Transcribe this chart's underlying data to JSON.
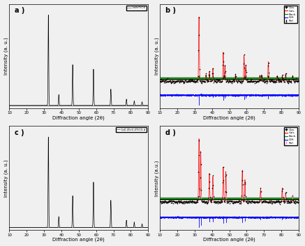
{
  "x_range": [
    10,
    90
  ],
  "xlabel": "Diffraction angle (2θ)",
  "panel_labels": [
    "a )",
    "b )",
    "c )",
    "d )"
  ],
  "legend_a": "LaSrTiO3",
  "legend_c": "La0.45r0.4TiO3-d",
  "peaks_a": [
    32.5,
    38.5,
    46.5,
    58.5,
    68.5,
    77.5,
    82.0,
    86.5
  ],
  "peak_heights_a": [
    1.0,
    0.12,
    0.45,
    0.4,
    0.18,
    0.07,
    0.05,
    0.04
  ],
  "peaks_c": [
    32.5,
    38.5,
    46.5,
    58.5,
    68.5,
    77.5,
    82.0,
    86.5
  ],
  "peak_heights_c": [
    1.0,
    0.12,
    0.35,
    0.5,
    0.3,
    0.08,
    0.06,
    0.04
  ],
  "rietveld_peaks_b": [
    32.5,
    36.5,
    38.5,
    40.5,
    46.5,
    47.5,
    53.5,
    58.5,
    59.5,
    67.5,
    68.5,
    72.5,
    77.5,
    80.5,
    82.5,
    86.5
  ],
  "rietveld_heights_b": [
    1.0,
    0.1,
    0.15,
    0.2,
    0.45,
    0.25,
    0.1,
    0.4,
    0.25,
    0.08,
    0.1,
    0.3,
    0.08,
    0.09,
    0.12,
    0.09
  ],
  "rietveld_peaks_d": [
    32.5,
    33.5,
    38.5,
    40.5,
    46.5,
    48.0,
    57.5,
    59.0,
    68.0,
    80.5,
    82.5,
    86.5
  ],
  "rietveld_heights_d": [
    1.0,
    0.8,
    0.45,
    0.4,
    0.55,
    0.48,
    0.5,
    0.35,
    0.2,
    0.22,
    0.14,
    0.1
  ],
  "ref_ticks_b": [
    32.5,
    36.5,
    38.5,
    40.5,
    46.5,
    47.5,
    53.5,
    58.5,
    59.5,
    67.5,
    68.5,
    72.5,
    77.5,
    80.5,
    82.5,
    86.5
  ],
  "ref_ticks_d": [
    32.5,
    33.5,
    38.5,
    40.5,
    46.5,
    48.0,
    57.5,
    59.0,
    68.0,
    80.5,
    82.5,
    86.5
  ],
  "colors": {
    "obs": "#ff0000",
    "calc": "#ff0000",
    "back": "#00bb00",
    "diff": "#0000ff",
    "ref_b": "#000000",
    "ref_d": "#ff88cc",
    "line": "#555555",
    "background": "#f0f0f0"
  }
}
